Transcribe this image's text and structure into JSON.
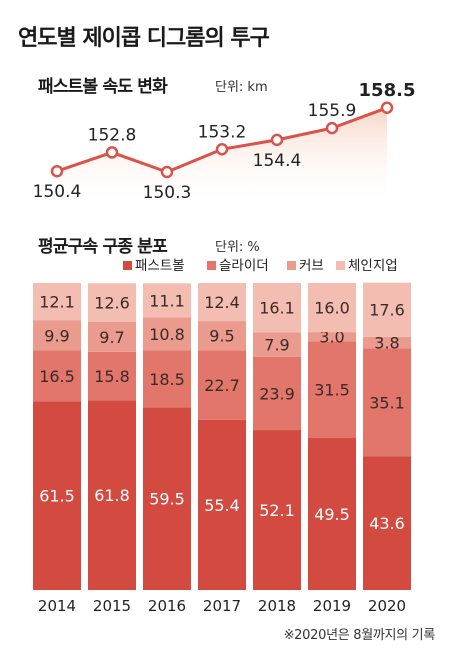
{
  "title": "연도별 제이콥 디그롬의 투구",
  "footnote": "※2020년은 8월까지의 기록",
  "chart_data": [
    {
      "type": "line",
      "title": "패스트볼 속도 변화",
      "unit": "단위: km",
      "x": [
        "2014",
        "2015",
        "2016",
        "2017",
        "2018",
        "2019",
        "2020"
      ],
      "values": [
        150.4,
        152.8,
        150.3,
        153.2,
        154.4,
        155.9,
        158.5
      ],
      "ylim": [
        148,
        160
      ],
      "color": "#d9534a"
    },
    {
      "type": "bar",
      "stacked": true,
      "title": "평균구속 구종 분포",
      "unit": "단위: %",
      "categories": [
        "2014",
        "2015",
        "2016",
        "2017",
        "2018",
        "2019",
        "2020"
      ],
      "series": [
        {
          "name": "패스트볼",
          "color": "#d34a40",
          "values": [
            61.5,
            61.8,
            59.5,
            55.4,
            52.1,
            49.5,
            43.6
          ]
        },
        {
          "name": "슬라이더",
          "color": "#e2766a",
          "values": [
            16.5,
            15.8,
            18.5,
            22.7,
            23.9,
            31.5,
            35.1
          ]
        },
        {
          "name": "커브",
          "color": "#eb9a8e",
          "values": [
            9.9,
            9.7,
            10.8,
            9.5,
            7.9,
            3.0,
            3.8
          ]
        },
        {
          "name": "체인지업",
          "color": "#f3bdb2",
          "values": [
            12.1,
            12.6,
            11.1,
            12.4,
            16.1,
            16.0,
            17.6
          ]
        }
      ],
      "legend": "top-right",
      "ylim": [
        0,
        100
      ]
    }
  ]
}
